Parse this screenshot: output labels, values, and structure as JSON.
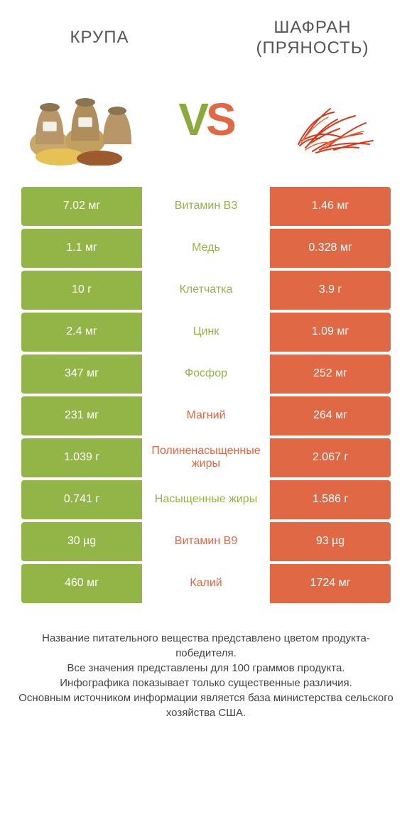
{
  "colors": {
    "green": "#93b446",
    "orange": "#e06844",
    "text_dark": "#555555"
  },
  "left_product": {
    "title": "КРУПА"
  },
  "right_product": {
    "title1": "ШАФРАН",
    "title2": "(ПРЯНОСТЬ)"
  },
  "rows": [
    {
      "nutrient": "Витамин B3",
      "left": "7.02 мг",
      "right": "1.46 мг",
      "winner": "left"
    },
    {
      "nutrient": "Медь",
      "left": "1.1 мг",
      "right": "0.328 мг",
      "winner": "left"
    },
    {
      "nutrient": "Клетчатка",
      "left": "10 г",
      "right": "3.9 г",
      "winner": "left"
    },
    {
      "nutrient": "Цинк",
      "left": "2.4 мг",
      "right": "1.09 мг",
      "winner": "left"
    },
    {
      "nutrient": "Фосфор",
      "left": "347 мг",
      "right": "252 мг",
      "winner": "left"
    },
    {
      "nutrient": "Магний",
      "left": "231 мг",
      "right": "264 мг",
      "winner": "right"
    },
    {
      "nutrient": "Полиненасыщенные жиры",
      "left": "1.039 г",
      "right": "2.067 г",
      "winner": "right"
    },
    {
      "nutrient": "Насыщенные жиры",
      "left": "0.741 г",
      "right": "1.586 г",
      "winner": "left"
    },
    {
      "nutrient": "Витамин B9",
      "left": "30 µg",
      "right": "93 µg",
      "winner": "right"
    },
    {
      "nutrient": "Калий",
      "left": "460 мг",
      "right": "1724 мг",
      "winner": "right"
    }
  ],
  "footer": {
    "l1": "Название питательного вещества представлено цветом продукта-победителя.",
    "l2": "Все значения представлены для 100 граммов продукта.",
    "l3": "Инфографика показывает только существенные различия.",
    "l4": "Основным источником информации является база министерства сельского хозяйства США."
  }
}
